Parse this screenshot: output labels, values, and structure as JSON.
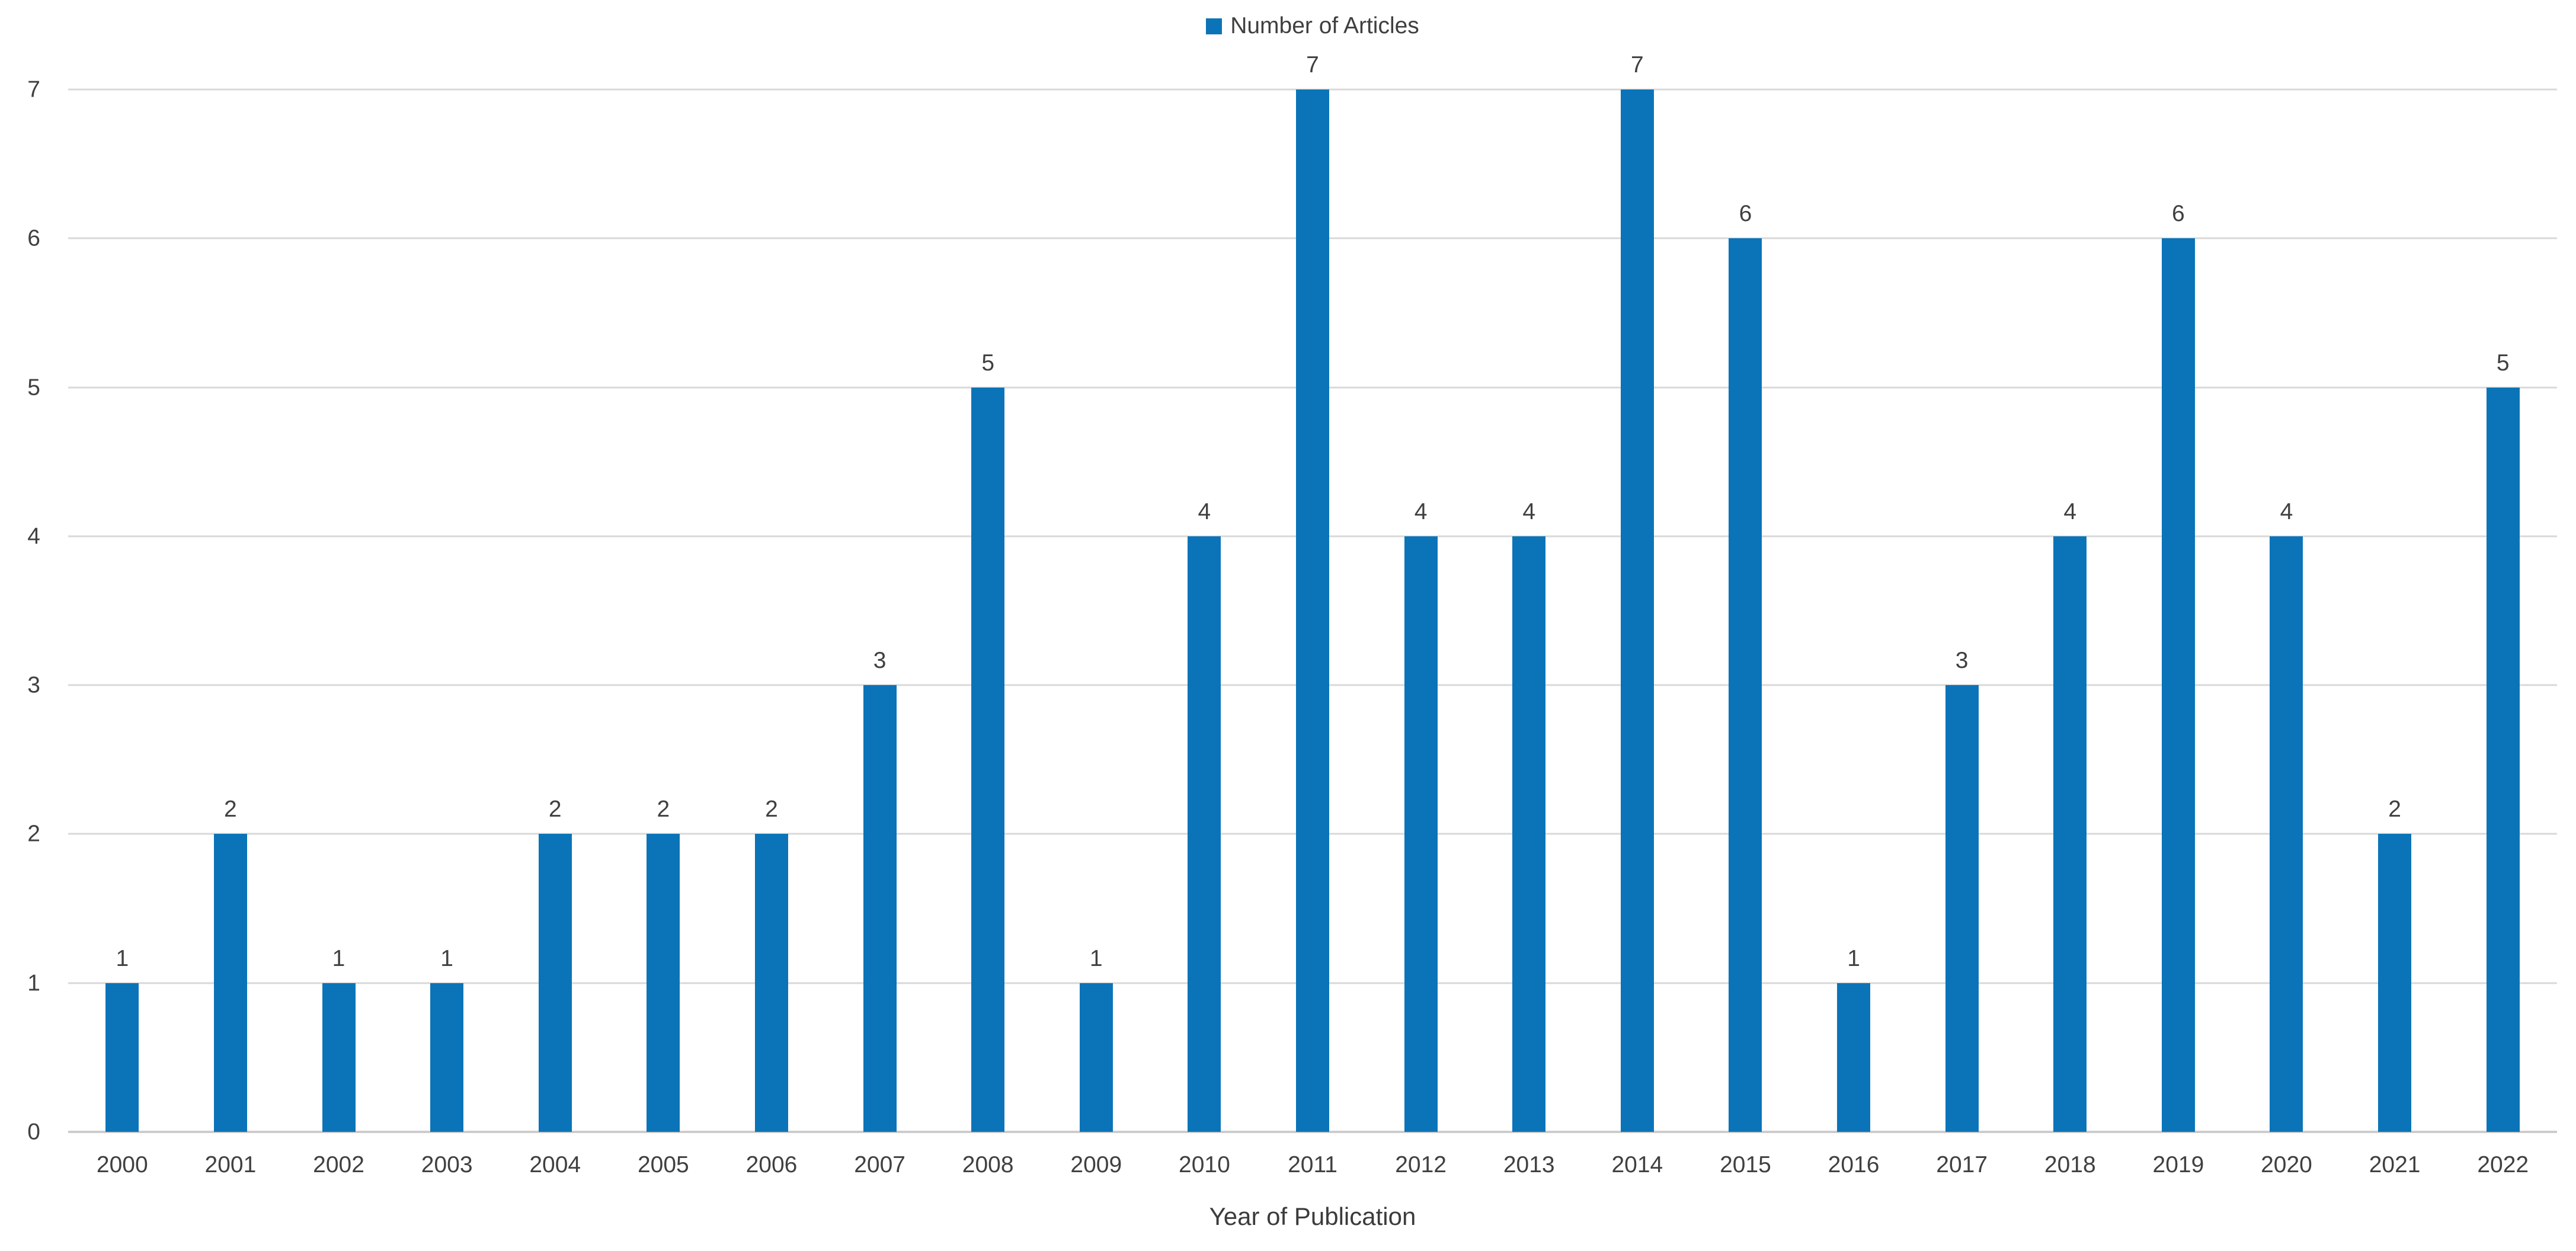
{
  "legend": {
    "label": "Number of Articles"
  },
  "axes": {
    "x_title": "Year of Publication",
    "y_ticks": [
      0,
      1,
      2,
      3,
      4,
      5,
      6,
      7
    ]
  },
  "colors": {
    "bar": "#0b74b8",
    "gridline": "#d9d9d9",
    "axis_line": "#cccccc",
    "text": "#404040"
  },
  "chart_data": {
    "type": "bar",
    "title": "",
    "series_name": "Number of Articles",
    "categories": [
      "2000",
      "2001",
      "2002",
      "2003",
      "2004",
      "2005",
      "2006",
      "2007",
      "2008",
      "2009",
      "2010",
      "2011",
      "2012",
      "2013",
      "2014",
      "2015",
      "2016",
      "2017",
      "2018",
      "2019",
      "2020",
      "2021",
      "2022"
    ],
    "values": [
      1,
      2,
      1,
      1,
      2,
      2,
      2,
      3,
      5,
      1,
      4,
      7,
      4,
      4,
      7,
      6,
      1,
      3,
      4,
      6,
      4,
      2,
      5
    ],
    "xlabel": "Year of Publication",
    "ylabel": "",
    "ylim": [
      0,
      7
    ],
    "grid": true,
    "legend_position": "top-center",
    "data_labels": true
  }
}
